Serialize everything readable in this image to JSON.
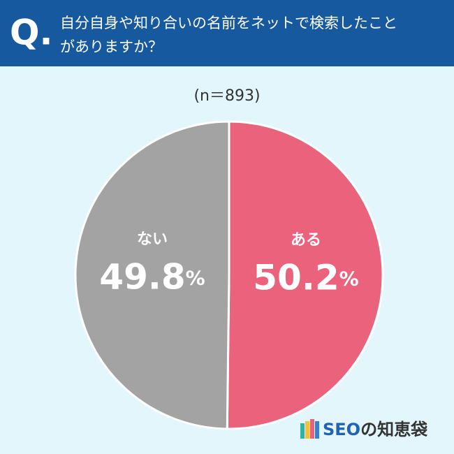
{
  "chart_data": {
    "type": "pie",
    "question_mark": "Q.",
    "title": [
      "自分自身や知り合いの名前をネットで検索したこと",
      "がありますか？"
    ],
    "subtitle": "(n＝893)",
    "categories": [
      "ある",
      "ない"
    ],
    "values": [
      50.2,
      49.8
    ],
    "value_labels": [
      "50.2%",
      "49.8%"
    ],
    "colors": [
      "#ea627c",
      "#a3a3a3"
    ],
    "brand": "SEOの知恵袋"
  }
}
